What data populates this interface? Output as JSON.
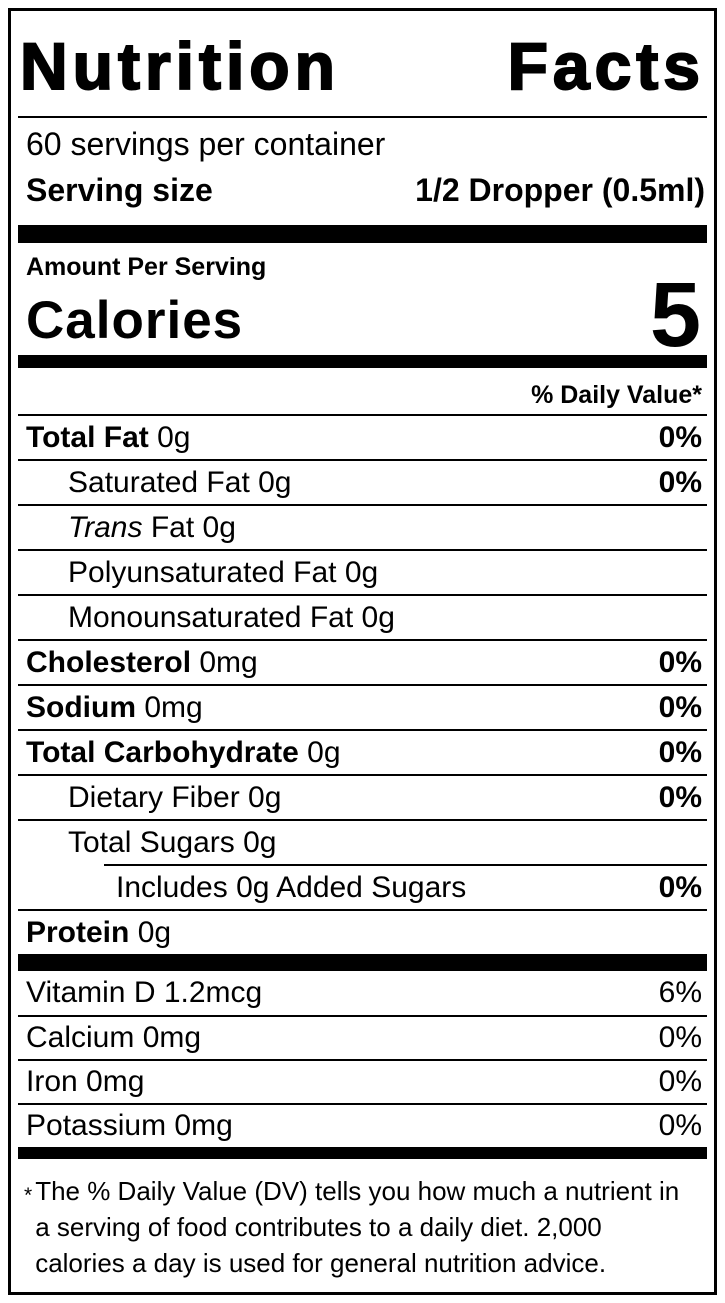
{
  "colors": {
    "ink": "#000000",
    "paper": "#ffffff"
  },
  "label": {
    "title": "Nutrition Facts",
    "servings_per_container": "60 servings per container",
    "serving_size": {
      "label": "Serving size",
      "value": "1/2 Dropper (0.5ml)"
    },
    "amount_per_serving": "Amount Per Serving",
    "calories": {
      "label": "Calories",
      "value": "5"
    },
    "daily_value_header": "% Daily Value*",
    "nutrients": [
      {
        "name": "Total Fat",
        "amount": "0g",
        "dv": "0%",
        "bold": true,
        "indent": 0
      },
      {
        "name": "Saturated Fat",
        "amount": "0g",
        "dv": "0%",
        "bold": false,
        "indent": 1
      },
      {
        "name_italic": "Trans",
        "name": "Fat",
        "amount": "0g",
        "dv": "",
        "bold": false,
        "indent": 1
      },
      {
        "name": "Polyunsaturated Fat",
        "amount": "0g",
        "dv": "",
        "bold": false,
        "indent": 1
      },
      {
        "name": "Monounsaturated Fat",
        "amount": "0g",
        "dv": "",
        "bold": false,
        "indent": 1
      },
      {
        "name": "Cholesterol",
        "amount": "0mg",
        "dv": "0%",
        "bold": true,
        "indent": 0
      },
      {
        "name": "Sodium",
        "amount": "0mg",
        "dv": "0%",
        "bold": true,
        "indent": 0
      },
      {
        "name": "Total Carbohydrate",
        "amount": "0g",
        "dv": "0%",
        "bold": true,
        "indent": 0
      },
      {
        "name": "Dietary Fiber",
        "amount": "0g",
        "dv": "0%",
        "bold": false,
        "indent": 1
      },
      {
        "name": "Total Sugars",
        "amount": "0g",
        "dv": "",
        "bold": false,
        "indent": 1
      },
      {
        "name": "Includes 0g Added Sugars",
        "amount": "",
        "dv": "0%",
        "bold": false,
        "indent": 2,
        "divider_indent": true
      },
      {
        "name": "Protein",
        "amount": "0g",
        "dv": "",
        "bold": true,
        "indent": 0
      }
    ],
    "micronutrients": [
      {
        "name": "Vitamin D",
        "amount": "1.2mcg",
        "dv": "6%"
      },
      {
        "name": "Calcium",
        "amount": "0mg",
        "dv": "0%"
      },
      {
        "name": "Iron",
        "amount": "0mg",
        "dv": "0%"
      },
      {
        "name": "Potassium",
        "amount": "0mg",
        "dv": "0%"
      }
    ],
    "footnote_marker": "*",
    "footnote": "The % Daily Value (DV) tells you how much a nutrient in a serving of food contributes to a daily diet. 2,000 calories a day is used for general nutrition advice."
  }
}
